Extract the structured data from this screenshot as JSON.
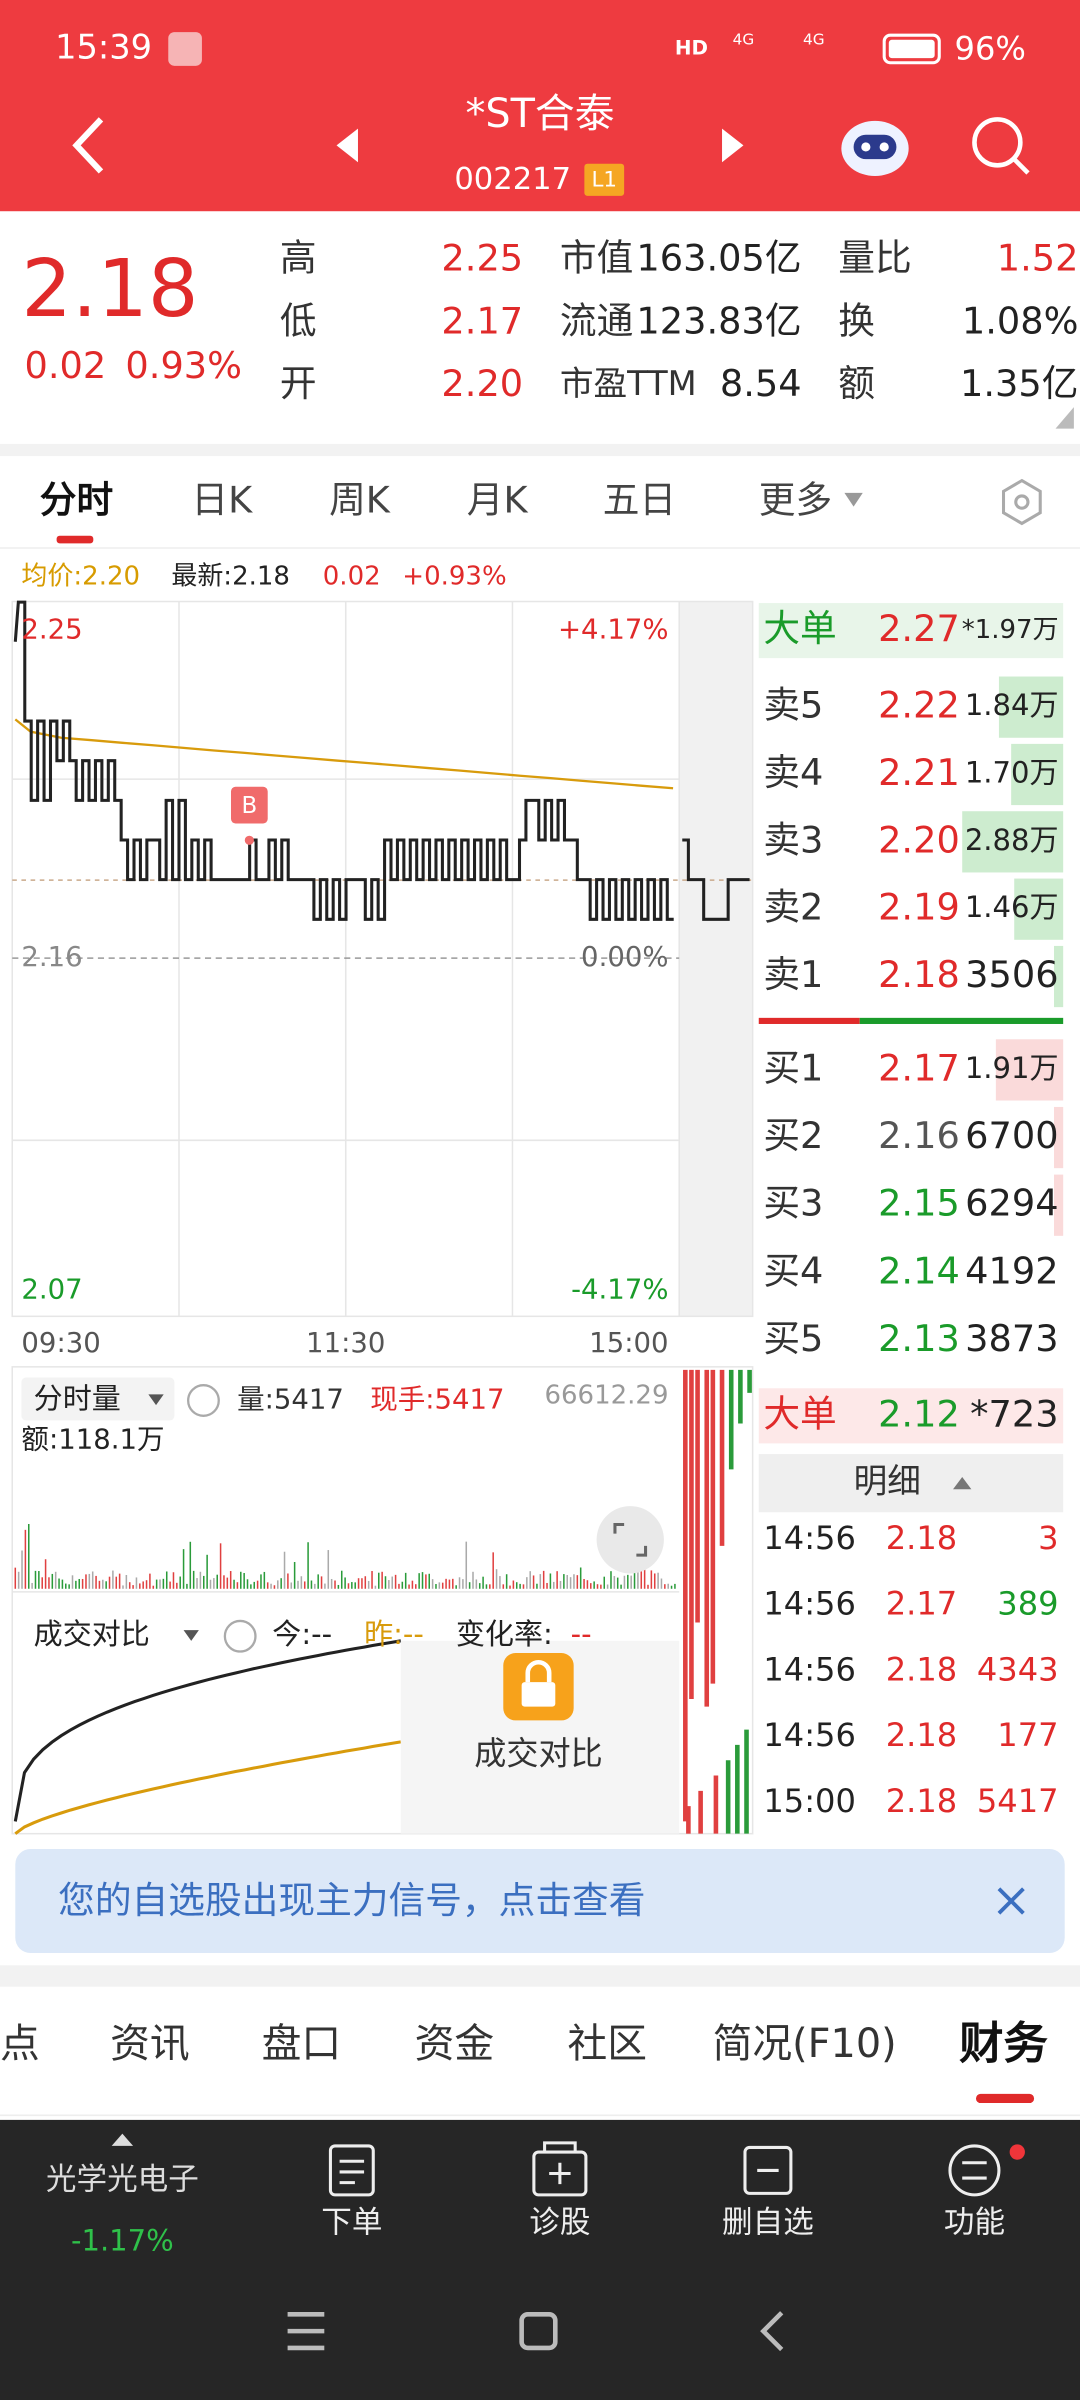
{
  "status_bar": {
    "time": "15:39",
    "indicators": [
      "HD",
      "4G",
      "4G"
    ],
    "battery": "96%"
  },
  "header": {
    "title": "*ST合泰",
    "code": "002217",
    "badge": "L1"
  },
  "quote": {
    "price": "2.18",
    "change": "0.02",
    "change_pct": "0.93%",
    "rows": [
      [
        "高",
        "2.25",
        "市值",
        "163.05亿",
        "量比",
        "1.52"
      ],
      [
        "低",
        "2.17",
        "流通",
        "123.83亿",
        "换",
        "1.08%"
      ],
      [
        "开",
        "2.20",
        "市盈TTM",
        "8.54",
        "额",
        "1.35亿"
      ]
    ]
  },
  "tabs": [
    "分时",
    "日K",
    "周K",
    "月K",
    "五日",
    "更多"
  ],
  "intraday": {
    "avg": "均价:2.20",
    "latest": "最新:2.18",
    "change": "0.02",
    "change_pct": "+0.93%",
    "top": "2.25",
    "top_pct": "+4.17%",
    "prev_close": "2.16",
    "prev_pct": "0.00%",
    "bottom": "2.07",
    "bottom_pct": "-4.17%",
    "times": [
      "09:30",
      "11:30",
      "15:00"
    ],
    "marker": "B"
  },
  "volume_panel": {
    "title": "分时量",
    "volume": "量:5417",
    "current": "现手:5417",
    "number": "66612.29",
    "amount": "额:118.1万"
  },
  "compare_panel": {
    "title": "成交对比",
    "today": "今:--",
    "yesterday": "昨:--",
    "rate_label": "变化率:",
    "rate_value": "--",
    "locked_label": "成交对比"
  },
  "order_book": {
    "big_sell": [
      "大单",
      "2.27",
      "*1.97万"
    ],
    "asks": [
      [
        "卖5",
        "2.22",
        "1.84万"
      ],
      [
        "卖4",
        "2.21",
        "1.70万"
      ],
      [
        "卖3",
        "2.20",
        "2.88万"
      ],
      [
        "卖2",
        "2.19",
        "1.46万"
      ],
      [
        "卖1",
        "2.18",
        "3506"
      ]
    ],
    "bids": [
      [
        "买1",
        "2.17",
        "1.91万"
      ],
      [
        "买2",
        "2.16",
        "6700"
      ],
      [
        "买3",
        "2.15",
        "6294"
      ],
      [
        "买4",
        "2.14",
        "4192"
      ],
      [
        "买5",
        "2.13",
        "3873"
      ]
    ],
    "big_buy": [
      "大单",
      "2.12",
      "*723"
    ],
    "detail_title": "明细",
    "trades": [
      [
        "14:56",
        "2.18",
        "3"
      ],
      [
        "14:56",
        "2.17",
        "389"
      ],
      [
        "14:56",
        "2.18",
        "4343"
      ],
      [
        "14:56",
        "2.18",
        "177"
      ],
      [
        "15:00",
        "2.18",
        "5417"
      ]
    ]
  },
  "banner": {
    "text": "您的自选股出现主力信号，点击查看"
  },
  "bottom_tabs": [
    "点",
    "资讯",
    "盘口",
    "资金",
    "社区",
    "简况(F10)",
    "财务"
  ],
  "nav": {
    "sector": "光学光电子",
    "sector_change": "-1.17%",
    "actions": [
      "下单",
      "诊股",
      "删自选",
      "功能"
    ]
  }
}
